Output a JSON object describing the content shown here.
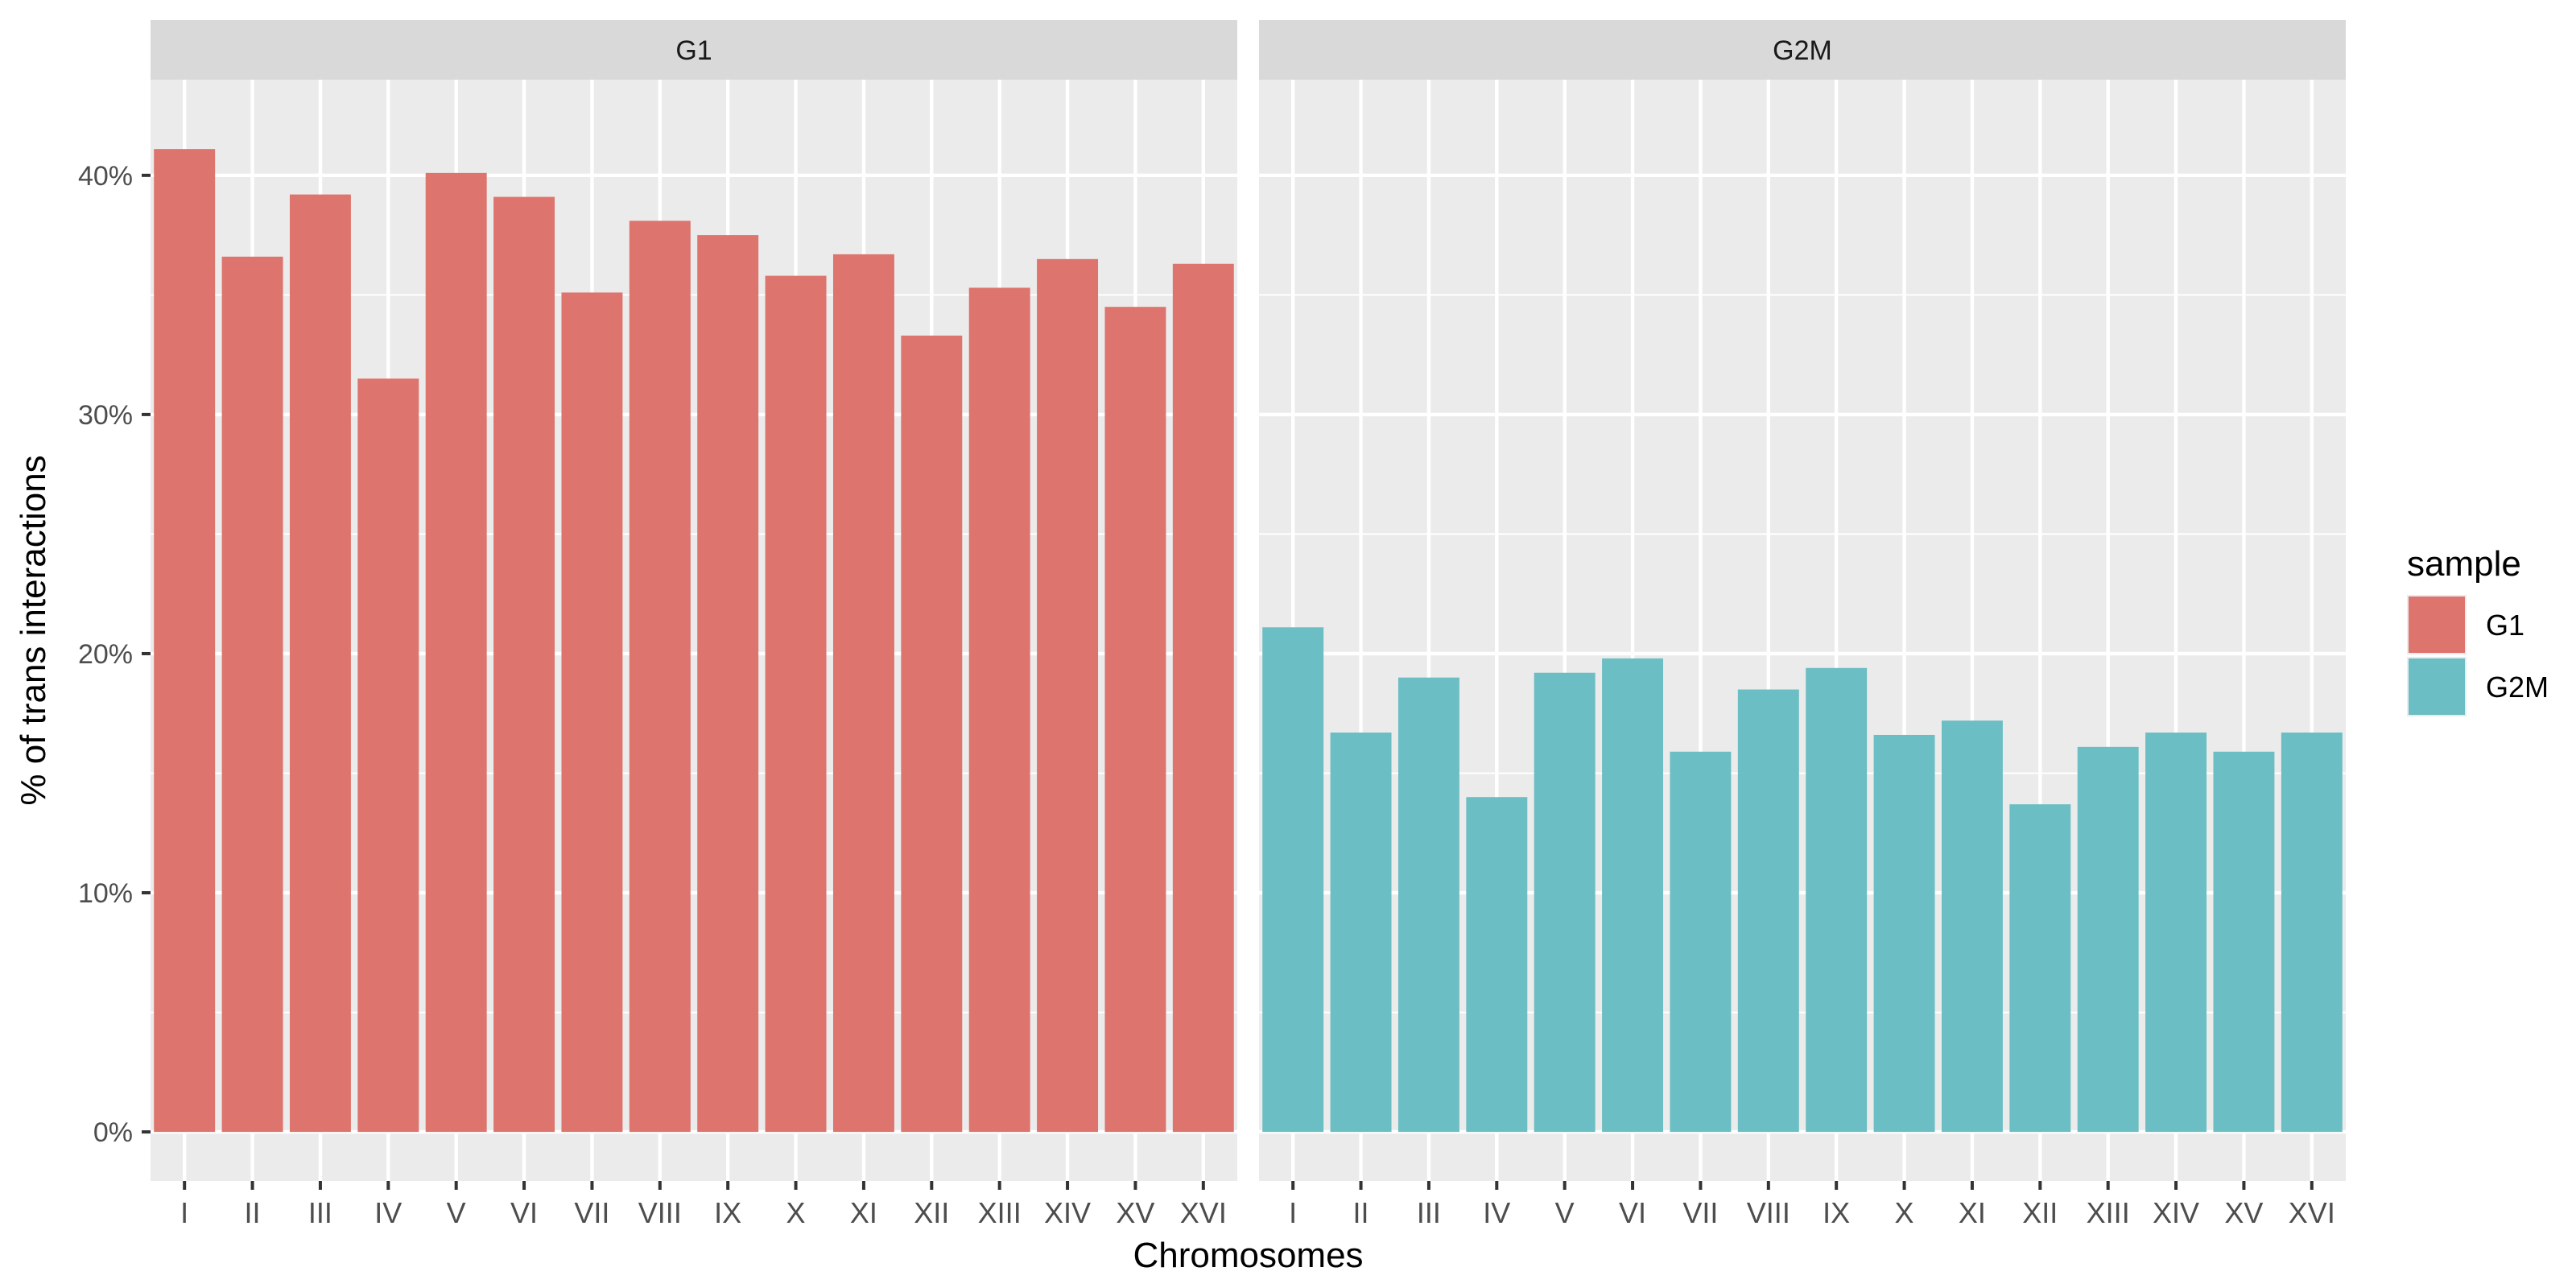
{
  "chart_data": {
    "type": "bar",
    "facet_variable": "sample",
    "xlabel": "Chromosomes",
    "ylabel": "% of trans interactions",
    "ylim": [
      -0.0205,
      0.44
    ],
    "yticks": [
      0,
      0.1,
      0.2,
      0.3,
      0.4
    ],
    "ytick_labels": [
      "0%",
      "10%",
      "20%",
      "30%",
      "40%"
    ],
    "grid": true,
    "categories": [
      "I",
      "II",
      "III",
      "IV",
      "V",
      "VI",
      "VII",
      "VIII",
      "IX",
      "X",
      "XI",
      "XII",
      "XIII",
      "XIV",
      "XV",
      "XVI"
    ],
    "panels": [
      {
        "title": "G1",
        "series": [
          {
            "name": "G1",
            "color": "#DD746D",
            "values": [
              0.411,
              0.366,
              0.392,
              0.315,
              0.401,
              0.391,
              0.351,
              0.381,
              0.375,
              0.358,
              0.367,
              0.333,
              0.353,
              0.365,
              0.345,
              0.363
            ]
          }
        ]
      },
      {
        "title": "G2M",
        "series": [
          {
            "name": "G2M",
            "color": "#6BBEC3",
            "values": [
              0.211,
              0.167,
              0.19,
              0.14,
              0.192,
              0.198,
              0.159,
              0.185,
              0.194,
              0.166,
              0.172,
              0.137,
              0.161,
              0.167,
              0.159,
              0.167
            ]
          }
        ]
      }
    ],
    "legend": {
      "title": "sample",
      "placement": "right",
      "entries": [
        {
          "label": "G1",
          "color": "#DD746D"
        },
        {
          "label": "G2M",
          "color": "#6BBEC3"
        }
      ]
    }
  }
}
